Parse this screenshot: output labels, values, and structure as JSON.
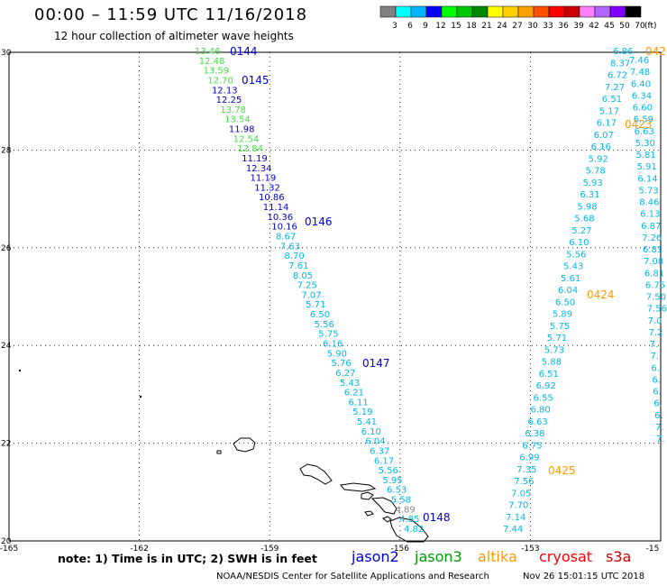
{
  "header": {
    "title": "00:00 – 11:59 UTC 11/16/2018",
    "subtitle": "12 hour collection of altimeter wave heights"
  },
  "color_scale": {
    "labels": [
      "3",
      "6",
      "9",
      "12",
      "15",
      "18",
      "21",
      "24",
      "27",
      "30",
      "33",
      "36",
      "39",
      "42",
      "45",
      "50",
      "70"
    ],
    "unit": "(ft)",
    "colors": [
      "#808080",
      "#00ffff",
      "#00b4ff",
      "#0000ff",
      "#00ff00",
      "#00c800",
      "#008800",
      "#ffff00",
      "#ffd000",
      "#ffa000",
      "#ff5000",
      "#ff0000",
      "#c80000",
      "#ff80ff",
      "#b464ff",
      "#8000ff",
      "#000000"
    ]
  },
  "axes": {
    "lat_labels": [
      "30",
      "28",
      "26",
      "24",
      "22",
      "20"
    ],
    "lon_labels": [
      "-165",
      "-162",
      "-159",
      "-156",
      "-153",
      "-15"
    ]
  },
  "passes": [
    {
      "id": "0144",
      "color": "#0000cc"
    },
    {
      "id": "0145",
      "color": "#0000cc"
    },
    {
      "id": "0146",
      "color": "#0000cc"
    },
    {
      "id": "0147",
      "color": "#0000cc"
    },
    {
      "id": "0148",
      "color": "#0000cc"
    },
    {
      "id": "0423",
      "color": "#ff9900"
    },
    {
      "id": "0424",
      "color": "#ff9900"
    },
    {
      "id": "0425",
      "color": "#ff9900"
    },
    {
      "id": "042",
      "color": "#ff9900"
    }
  ],
  "track_west": [
    "13.46",
    "12.48",
    "13.59",
    "12.70",
    "12.13",
    "12.25",
    "13.78",
    "13.54",
    "11.98",
    "12.54",
    "12.84",
    "11.19",
    "12.34",
    "11.19",
    "11.32",
    "10.86",
    "11.14",
    "10.36",
    "10.16",
    "8.67",
    "7.63",
    "8.70",
    "7.61",
    "8.05",
    "7.25",
    "7.07",
    "5.71",
    "6.50",
    "5.56",
    "5.75",
    "6.16",
    "5.90",
    "5.76",
    "6.27",
    "5.43",
    "6.21",
    "6.11",
    "5.19",
    "5.41",
    "6.10",
    "6.04",
    "6.37",
    "6.17",
    "5.56",
    "5.95",
    "6.53",
    "5.58",
    "4.89",
    "4.85",
    "4.82"
  ],
  "track_east_a": [
    "6.86",
    "8.37",
    "6.72",
    "7.27",
    "6.51",
    "5.17",
    "6.17",
    "6.07",
    "6.16",
    "5.92",
    "5.78",
    "5.93",
    "6.31",
    "5.98",
    "5.68",
    "5.27",
    "6.10",
    "5.56",
    "5.43",
    "5.61",
    "6.04",
    "6.50",
    "5.89",
    "5.75",
    "5.71",
    "5.73",
    "5.88",
    "6.51",
    "6.92",
    "6.55",
    "6.80",
    "6.63",
    "6.38",
    "6.75",
    "6.99",
    "7.35",
    "7.56",
    "7.05",
    "7.70",
    "7.14",
    "7.44"
  ],
  "track_east_b": [
    "7.46",
    "7.48",
    "6.40",
    "6.34",
    "6.60",
    "6.59",
    "6.63",
    "5.30",
    "5.81",
    "5.91",
    "6.14",
    "5.73",
    "8.46",
    "6.13",
    "6.87",
    "7.26",
    "6.81",
    "7.08",
    "6.81",
    "6.75",
    "7.50",
    "7.56",
    "7.0",
    "7.2",
    "7.",
    "7.",
    "6.",
    "6.",
    "6.",
    "6.",
    "6.",
    "7.",
    "7."
  ],
  "footer": {
    "note": "note: 1) Time is in UTC; 2) SWH is in feet",
    "satellites": [
      {
        "name": "jason2",
        "color": "#0000cc"
      },
      {
        "name": "jason3",
        "color": "#009900"
      },
      {
        "name": "altika",
        "color": "#ff9900"
      },
      {
        "name": "cryosat",
        "color": "#ff0000"
      },
      {
        "name": "s3a",
        "color": "#cc0000"
      }
    ],
    "org": "NOAA/NESDIS Center for Satellite Applications and Research",
    "timestamp": "Nov 26 15:01:15 UTC 2018"
  }
}
